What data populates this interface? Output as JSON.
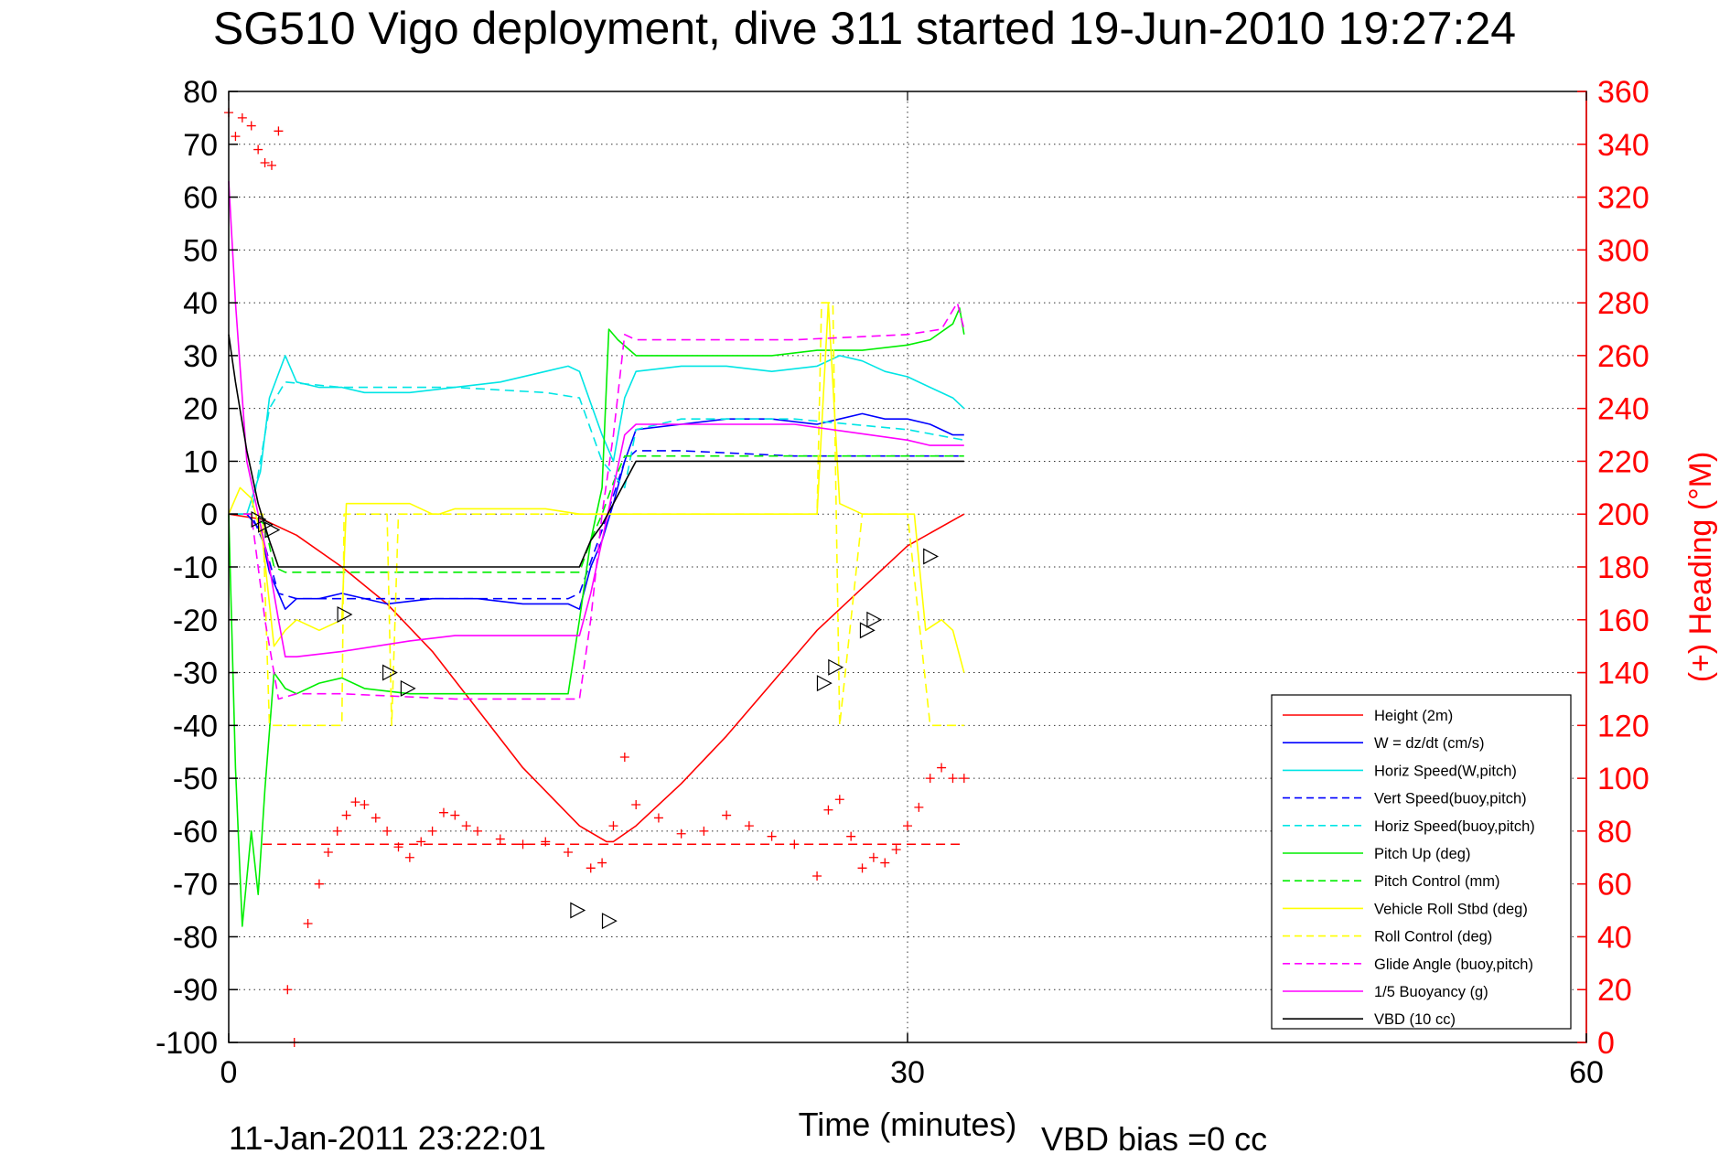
{
  "chart_data": {
    "type": "line",
    "title": "SG510 Vigo deployment, dive 311 started 19-Jun-2010 19:27:24",
    "xlabel": "Time (minutes)",
    "ylabel": "",
    "y2label": "(+) Heading (°M)",
    "footer_left": "11-Jan-2011 23:22:01",
    "footer_right": "VBD bias =0 cc",
    "xlim": [
      0,
      60
    ],
    "ylim": [
      -100,
      80
    ],
    "y2lim": [
      0,
      360
    ],
    "xticks": [
      "0",
      "30",
      "60"
    ],
    "yticks": [
      "80",
      "70",
      "60",
      "50",
      "40",
      "30",
      "20",
      "10",
      "0",
      "-10",
      "-20",
      "-30",
      "-40",
      "-50",
      "-60",
      "-70",
      "-80",
      "-90",
      "-100"
    ],
    "y2ticks": [
      "360",
      "340",
      "320",
      "300",
      "280",
      "260",
      "240",
      "220",
      "200",
      "180",
      "160",
      "140",
      "120",
      "100",
      "80",
      "60",
      "40",
      "20",
      "0"
    ],
    "grid": true,
    "legend_position": "bottom-right",
    "series": [
      {
        "name": "Height (2m)",
        "color": "#ff0000",
        "dash": "solid",
        "x": [
          0,
          1.5,
          3,
          5,
          7,
          9,
          11,
          13,
          15.5,
          16.7,
          17,
          18,
          20,
          22,
          24,
          26,
          28,
          30,
          32.5
        ],
        "y": [
          0,
          -1,
          -4,
          -10,
          -17,
          -26,
          -37,
          -48,
          -59,
          -62,
          -62,
          -59,
          -51,
          -42,
          -32,
          -22,
          -14,
          -6,
          0
        ]
      },
      {
        "name": "W = dz/dt (cm/s)",
        "color": "#0000ff",
        "dash": "solid",
        "x": [
          0,
          0.8,
          1.4,
          1.8,
          2.5,
          3,
          4,
          5,
          7,
          9,
          11,
          13,
          15,
          15.5,
          16,
          16.5,
          17,
          17.5,
          18,
          20,
          22,
          24,
          26,
          27,
          28,
          29,
          30,
          31,
          32,
          32.5
        ],
        "y": [
          0,
          0,
          -3,
          -11,
          -18,
          -16,
          -16,
          -15,
          -17,
          -16,
          -16,
          -17,
          -17,
          -18,
          -10,
          -5,
          2,
          10,
          16,
          17,
          18,
          18,
          17,
          18,
          19,
          18,
          18,
          17,
          15,
          15
        ]
      },
      {
        "name": "Horiz Speed(W,pitch)",
        "color": "#00e5e5",
        "dash": "solid",
        "x": [
          0,
          0.8,
          1.4,
          1.8,
          2.5,
          3,
          4,
          5,
          6,
          8,
          10,
          12,
          14,
          15,
          15.5,
          16,
          16.5,
          17,
          17.5,
          18,
          20,
          22,
          24,
          26,
          27,
          28,
          29,
          30,
          31,
          32,
          32.5
        ],
        "y": [
          0,
          0,
          8,
          22,
          30,
          25,
          24,
          24,
          23,
          23,
          24,
          25,
          27,
          28,
          27,
          21,
          15,
          10,
          22,
          27,
          28,
          28,
          27,
          28,
          30,
          29,
          27,
          26,
          24,
          22,
          20
        ]
      },
      {
        "name": "Vert Speed(buoy,pitch)",
        "color": "#0000ff",
        "dash": "dashed",
        "x": [
          0,
          1,
          1.6,
          2.2,
          3,
          5,
          10,
          15,
          15.5,
          16.5,
          17.5,
          18,
          20,
          25,
          30,
          32.5
        ],
        "y": [
          0,
          0,
          -6,
          -15,
          -16,
          -16,
          -16,
          -16,
          -15,
          -3,
          10,
          12,
          12,
          11,
          11,
          11
        ]
      },
      {
        "name": "Horiz Speed(buoy,pitch)",
        "color": "#00e5e5",
        "dash": "dashed",
        "x": [
          0,
          1,
          1.8,
          2.5,
          5,
          10,
          14,
          15.5,
          16.5,
          17.5,
          18,
          20,
          25,
          30,
          32.5
        ],
        "y": [
          0,
          0,
          20,
          25,
          24,
          24,
          23,
          22,
          10,
          5,
          16,
          18,
          18,
          16,
          14
        ]
      },
      {
        "name": "Pitch Up (deg)",
        "color": "#00ee00",
        "dash": "solid",
        "x": [
          0,
          0.3,
          0.6,
          1.0,
          1.3,
          1.6,
          2.0,
          2.5,
          3,
          4,
          5,
          6,
          8,
          10,
          12,
          15,
          15.5,
          16,
          16.5,
          16.8,
          17.2,
          18,
          20,
          22,
          24,
          26,
          28,
          30,
          31,
          32,
          32.3,
          32.5
        ],
        "y": [
          0,
          -48,
          -78,
          -60,
          -72,
          -52,
          -30,
          -33,
          -34,
          -32,
          -31,
          -33,
          -34,
          -34,
          -34,
          -34,
          -20,
          -5,
          5,
          35,
          33,
          30,
          30,
          30,
          30,
          31,
          31,
          32,
          33,
          36,
          39,
          34
        ]
      },
      {
        "name": "Pitch Control (mm)",
        "color": "#00ee00",
        "dash": "dashed",
        "x": [
          0,
          1.0,
          1.6,
          2.0,
          2.5,
          5,
          10,
          15,
          15.5,
          16,
          16.5,
          17,
          17.5,
          20,
          25,
          30,
          32.5
        ],
        "y": [
          0,
          0,
          -2,
          -10,
          -11,
          -11,
          -11,
          -11,
          -11,
          -5,
          0,
          6,
          11,
          11,
          11,
          11,
          11
        ]
      },
      {
        "name": "Vehicle Roll Stbd (deg)",
        "color": "#ffff00",
        "dash": "solid",
        "x": [
          0,
          0.5,
          1,
          1.5,
          2,
          2.5,
          3,
          4,
          5,
          5.2,
          6,
          8,
          9,
          9.3,
          10,
          12,
          14,
          15.5,
          16,
          17,
          20,
          24,
          26,
          26.5,
          27,
          28,
          29,
          30,
          30.3,
          30.8,
          31.5,
          32,
          32.5
        ],
        "y": [
          0,
          5,
          3,
          -5,
          -25,
          -22,
          -20,
          -22,
          -20,
          2,
          2,
          2,
          0,
          0,
          1,
          1,
          1,
          0,
          0,
          0,
          0,
          0,
          0,
          40,
          2,
          0,
          0,
          0,
          0,
          -22,
          -20,
          -22,
          -30
        ]
      },
      {
        "name": "Roll Control (deg)",
        "color": "#ffff00",
        "dash": "dashed",
        "x": [
          0,
          1.5,
          1.8,
          2.5,
          5,
          5.1,
          7,
          7.2,
          7.5,
          10,
          15,
          16,
          20,
          26,
          26.2,
          26.7,
          27,
          28,
          29,
          30,
          31,
          32.5
        ],
        "y": [
          0,
          0,
          -40,
          -40,
          -40,
          0,
          0,
          -40,
          0,
          0,
          0,
          0,
          0,
          0,
          40,
          40,
          -40,
          0,
          0,
          0,
          -40,
          -40
        ]
      },
      {
        "name": "Glide Angle (buoy,pitch)",
        "color": "#ff00ff",
        "dash": "dashed",
        "x": [
          0,
          1,
          1.6,
          2.2,
          3,
          5,
          10,
          15,
          15.5,
          16,
          16.5,
          17,
          17.5,
          18,
          20,
          25,
          30,
          31.5,
          32.2,
          32.5
        ],
        "y": [
          0,
          0,
          -20,
          -35,
          -34,
          -34,
          -35,
          -35,
          -35,
          -20,
          0,
          15,
          34,
          33,
          33,
          33,
          34,
          35,
          40,
          35
        ]
      },
      {
        "name": "1/5 Buoyancy (g)",
        "color": "#ff00ff",
        "dash": "solid",
        "x": [
          0,
          0.3,
          0.8,
          1.3,
          1.8,
          2.2,
          2.5,
          3,
          5,
          8,
          10,
          15,
          15.5,
          16,
          16.5,
          17,
          17.5,
          18,
          20,
          25,
          30,
          31,
          32.5
        ],
        "y": [
          63,
          40,
          10,
          0,
          -10,
          -20,
          -27,
          -27,
          -26,
          -24,
          -23,
          -23,
          -23,
          -15,
          -5,
          5,
          15,
          17,
          17,
          17,
          14,
          13,
          13
        ]
      },
      {
        "name": "VBD (10 cc)",
        "color": "#000000",
        "dash": "solid",
        "x": [
          0,
          0.3,
          0.8,
          1.3,
          1.8,
          2.2,
          2.5,
          5,
          10,
          15,
          15.5,
          16,
          16.5,
          17,
          17.5,
          18,
          20,
          25,
          30,
          32.5
        ],
        "y": [
          34,
          25,
          12,
          2,
          -5,
          -10,
          -10,
          -10,
          -10,
          -10,
          -10,
          -5,
          -2,
          2,
          6,
          10,
          10,
          10,
          10,
          10
        ]
      }
    ],
    "extra_series": [
      {
        "role": "heading",
        "marker": "+",
        "color": "#ff0000",
        "axis": "right",
        "x": [
          0,
          0.3,
          0.6,
          1,
          1.3,
          1.6,
          1.9,
          2.2,
          2.6,
          2.9,
          3.5,
          4,
          4.4,
          4.8,
          5.2,
          5.6,
          6,
          6.5,
          7,
          7.5,
          8,
          8.5,
          9,
          9.5,
          10,
          10.5,
          11,
          12,
          13,
          14,
          15,
          16,
          16.5,
          17,
          17.5,
          18,
          19,
          20,
          21,
          22,
          23,
          24,
          25,
          26,
          26.5,
          27,
          27.5,
          28,
          28.5,
          29,
          29.5,
          30,
          30.5,
          31,
          31.5,
          32,
          32.5
        ],
        "y": [
          352,
          343,
          350,
          347,
          338,
          333,
          332,
          345,
          20,
          0,
          45,
          60,
          72,
          80,
          86,
          91,
          90,
          85,
          80,
          74,
          70,
          76,
          80,
          87,
          86,
          82,
          80,
          77,
          75,
          76,
          72,
          66,
          68,
          82,
          108,
          90,
          85,
          79,
          80,
          86,
          82,
          78,
          75,
          63,
          88,
          92,
          78,
          66,
          70,
          68,
          73,
          82,
          89,
          100,
          104,
          100,
          100
        ]
      },
      {
        "role": "target heading",
        "dash": "dashed",
        "color": "#ff0000",
        "axis": "right",
        "x": [
          1.5,
          32.5
        ],
        "y": [
          75,
          75
        ]
      },
      {
        "role": "depth markers",
        "marker": "triangle",
        "color": "#000000",
        "axis": "left",
        "x": [
          1.3,
          1.6,
          1.9,
          5.1,
          7.1,
          7.9,
          15.4,
          16.8,
          26.3,
          26.8,
          28.2,
          28.5,
          31
        ],
        "y": [
          -1,
          -2,
          -3,
          -19,
          -30,
          -33,
          -75,
          -77,
          -32,
          -29,
          -22,
          -20,
          -8
        ]
      }
    ]
  }
}
